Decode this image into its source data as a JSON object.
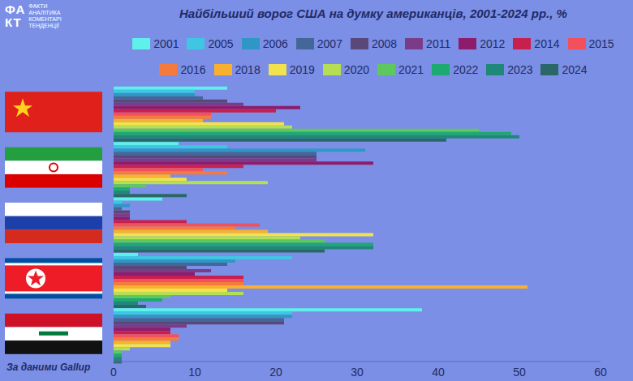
{
  "chart_data": {
    "type": "bar",
    "orientation": "horizontal",
    "title": "Найбільший ворог США на думку американців, 2001-2024 рр., %",
    "annotations": [
      "За даними Gallup"
    ],
    "logo": {
      "mark": [
        "ФА",
        "КТ"
      ],
      "lines": [
        "ФАКТИ",
        "АНАЛІТИКА",
        "КОМЕНТАРІ",
        "ТЕНДЕНЦІЇ"
      ]
    },
    "categories": [
      null,
      null,
      null,
      null,
      null
    ],
    "series": [
      {
        "name": "2001",
        "color": "#5ef0ea",
        "values": [
          14,
          8,
          6,
          3,
          38
        ]
      },
      {
        "name": "2005",
        "color": "#3fc6e2",
        "values": [
          10,
          14,
          1,
          22,
          22
        ]
      },
      {
        "name": "2006",
        "color": "#2f97c6",
        "values": [
          10,
          31,
          2,
          15,
          22
        ]
      },
      {
        "name": "2007",
        "color": "#44679a",
        "values": [
          11,
          25,
          1,
          14,
          21
        ]
      },
      {
        "name": "2008",
        "color": "#5a4878",
        "values": [
          14,
          25,
          2,
          9,
          21
        ]
      },
      {
        "name": "2011",
        "color": "#7a3c88",
        "values": [
          16,
          25,
          2,
          12,
          9
        ]
      },
      {
        "name": "2012",
        "color": "#8e1c6c",
        "values": [
          23,
          32,
          2,
          10,
          7
        ]
      },
      {
        "name": "2014",
        "color": "#c8204e",
        "values": [
          20,
          16,
          9,
          16,
          7
        ]
      },
      {
        "name": "2015",
        "color": "#f2505c",
        "values": [
          12,
          11,
          18,
          16,
          8
        ]
      },
      {
        "name": "2016",
        "color": "#f57a3e",
        "values": [
          12,
          14,
          15,
          16,
          8
        ]
      },
      {
        "name": "2018",
        "color": "#f8b02e",
        "values": [
          11,
          7,
          19,
          51,
          7
        ]
      },
      {
        "name": "2019",
        "color": "#f2e24e",
        "values": [
          21,
          9,
          32,
          14,
          7
        ]
      },
      {
        "name": "2020",
        "color": "#b6de52",
        "values": [
          22,
          19,
          23,
          16,
          2
        ]
      },
      {
        "name": "2021",
        "color": "#5ec85e",
        "values": [
          45,
          4,
          26,
          7,
          1
        ]
      },
      {
        "name": "2022",
        "color": "#1ea872",
        "values": [
          49,
          2,
          32,
          6,
          1
        ]
      },
      {
        "name": "2023",
        "color": "#1f8878",
        "values": [
          50,
          2,
          32,
          3,
          1
        ]
      },
      {
        "name": "2024",
        "color": "#2a6868",
        "values": [
          41,
          9,
          26,
          4,
          1
        ]
      }
    ],
    "xlim": [
      0,
      60
    ],
    "xticks": [
      0,
      10,
      20,
      30,
      40,
      50,
      60
    ],
    "grid": false,
    "legend": "top"
  }
}
